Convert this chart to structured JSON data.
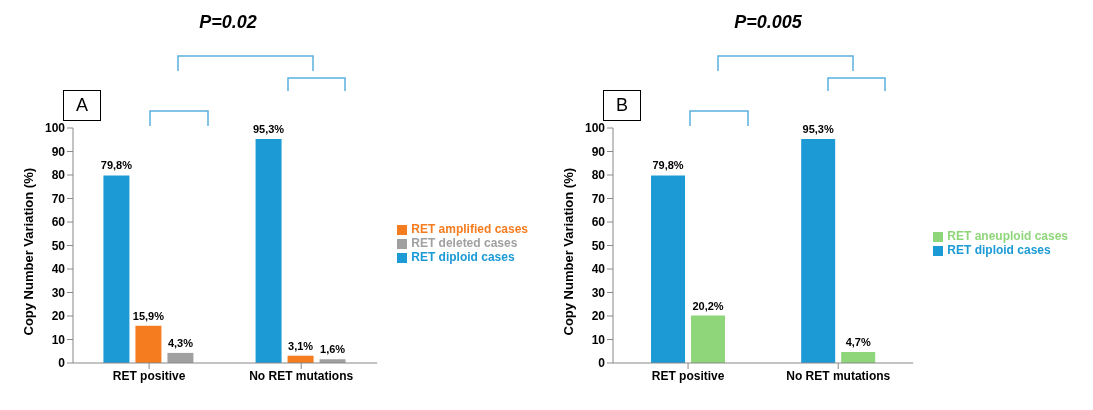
{
  "chart_data": [
    {
      "type": "bar",
      "title": "A",
      "ylabel": "Copy Number Variation (%)",
      "categories": [
        "RET positive",
        "No RET mutations"
      ],
      "series": [
        {
          "name": "RET diploid cases",
          "color": "#1c9ad6",
          "values": [
            79.8,
            95.3
          ],
          "value_labels": [
            "79,8%",
            "95,3%"
          ]
        },
        {
          "name": "RET amplified cases",
          "color": "#f57c1f",
          "values": [
            15.9,
            3.1
          ],
          "value_labels": [
            "15,9%",
            "3,1%"
          ]
        },
        {
          "name": "RET deleted cases",
          "color": "#a0a0a0",
          "values": [
            4.3,
            1.6
          ],
          "value_labels": [
            "4,3%",
            "1,6%"
          ]
        }
      ],
      "ylim": [
        0,
        100
      ],
      "yticks": [
        0,
        10,
        20,
        30,
        40,
        50,
        60,
        70,
        80,
        90,
        100
      ],
      "grid": false,
      "legend": "right",
      "annotations": [
        "P=0.02"
      ]
    },
    {
      "type": "bar",
      "title": "B",
      "ylabel": "Copy Number Variation (%)",
      "categories": [
        "RET positive",
        "No RET mutations"
      ],
      "series": [
        {
          "name": "RET diploid cases",
          "color": "#1c9ad6",
          "values": [
            79.8,
            95.3
          ],
          "value_labels": [
            "79,8%",
            "95,3%"
          ]
        },
        {
          "name": "RET aneuploid cases",
          "color": "#8fd67a",
          "values": [
            20.2,
            4.7
          ],
          "value_labels": [
            "20,2%",
            "4,7%"
          ]
        }
      ],
      "ylim": [
        0,
        100
      ],
      "yticks": [
        0,
        10,
        20,
        30,
        40,
        50,
        60,
        70,
        80,
        90,
        100
      ],
      "grid": false,
      "legend": "right",
      "annotations": [
        "P=0.005"
      ]
    }
  ]
}
